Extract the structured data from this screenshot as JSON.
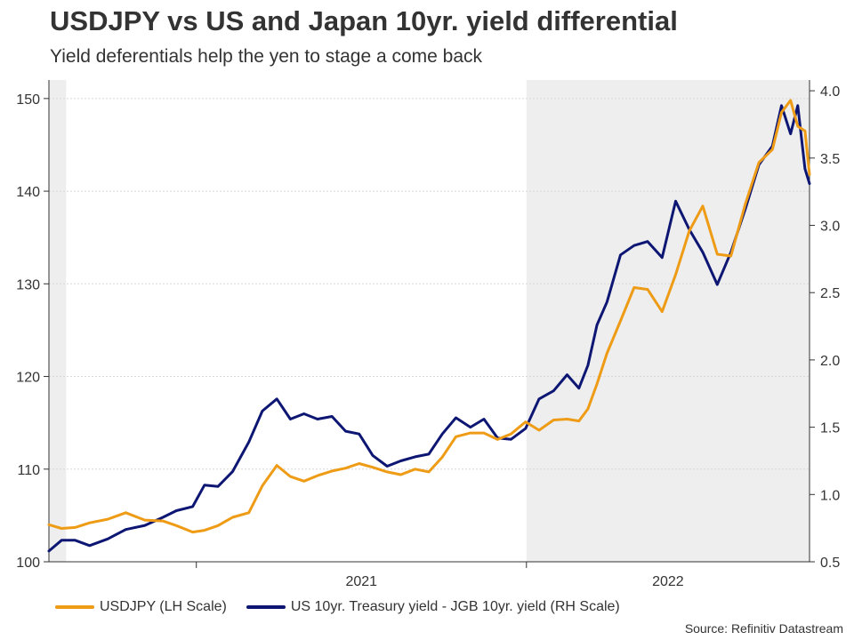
{
  "title": "USDJPY vs US and Japan 10yr. yield differential",
  "subtitle": "Yield deferentials help the yen to stage a come back",
  "source": "Source: Refinitiv Datastream",
  "colors": {
    "usdjpy": "#ee9b16",
    "spread": "#0d1773",
    "shade": "#eeeeee"
  },
  "chart_data": {
    "type": "line",
    "x_ticks": [
      "2021",
      "2022"
    ],
    "left_axis": {
      "ylim": [
        100,
        152
      ],
      "ticks": [
        100,
        110,
        120,
        130,
        140,
        150
      ]
    },
    "right_axis": {
      "ylim": [
        0.5,
        4.08
      ],
      "ticks": [
        "0.5",
        "1.0",
        "1.5",
        "2.0",
        "2.5",
        "3.0",
        "3.5",
        "4.0"
      ]
    },
    "xlim": [
      "2020-07-22",
      "2022-11-10"
    ],
    "shaded_periods": [
      [
        "2020-07-22",
        "2020-08-10"
      ],
      [
        "2022-01-01",
        "2022-11-10"
      ]
    ],
    "grid": "horizontal",
    "legend_position": "bottom",
    "series": [
      {
        "name": "USDJPY (LH Scale)",
        "axis": "left",
        "x": [
          "2020-07-22",
          "2020-08-05",
          "2020-08-20",
          "2020-09-05",
          "2020-09-25",
          "2020-10-15",
          "2020-11-05",
          "2020-11-25",
          "2020-12-10",
          "2020-12-28",
          "2021-01-10",
          "2021-01-25",
          "2021-02-10",
          "2021-02-28",
          "2021-03-15",
          "2021-03-31",
          "2021-04-15",
          "2021-04-30",
          "2021-05-15",
          "2021-05-31",
          "2021-06-15",
          "2021-06-30",
          "2021-07-15",
          "2021-07-31",
          "2021-08-15",
          "2021-08-31",
          "2021-09-15",
          "2021-09-30",
          "2021-10-15",
          "2021-10-31",
          "2021-11-15",
          "2021-11-30",
          "2021-12-15",
          "2021-12-31",
          "2022-01-15",
          "2022-01-31",
          "2022-02-15",
          "2022-02-28",
          "2022-03-10",
          "2022-03-20",
          "2022-03-31",
          "2022-04-15",
          "2022-04-30",
          "2022-05-15",
          "2022-05-31",
          "2022-06-15",
          "2022-06-30",
          "2022-07-15",
          "2022-07-31",
          "2022-08-15",
          "2022-08-31",
          "2022-09-15",
          "2022-09-30",
          "2022-10-10",
          "2022-10-20",
          "2022-10-28",
          "2022-11-05",
          "2022-11-10"
        ],
        "values": [
          104.0,
          103.6,
          103.7,
          104.2,
          104.6,
          105.3,
          104.5,
          104.4,
          103.9,
          103.2,
          103.4,
          103.9,
          104.8,
          105.3,
          108.2,
          110.4,
          109.2,
          108.7,
          109.3,
          109.8,
          110.1,
          110.6,
          110.2,
          109.7,
          109.4,
          110.0,
          109.7,
          111.3,
          113.5,
          113.9,
          113.9,
          113.2,
          113.8,
          115.1,
          114.2,
          115.3,
          115.4,
          115.2,
          116.5,
          119.2,
          122.5,
          126.0,
          129.6,
          129.4,
          127.0,
          131.0,
          135.7,
          138.4,
          133.2,
          133.0,
          138.6,
          143.1,
          144.5,
          148.5,
          149.8,
          147.0,
          146.5,
          141.8
        ]
      },
      {
        "name": "US 10yr. Treasury yield - JGB 10yr. yield (RH Scale)",
        "axis": "right",
        "x": [
          "2020-07-22",
          "2020-08-05",
          "2020-08-20",
          "2020-09-05",
          "2020-09-25",
          "2020-10-15",
          "2020-11-05",
          "2020-11-25",
          "2020-12-10",
          "2020-12-28",
          "2021-01-10",
          "2021-01-25",
          "2021-02-10",
          "2021-02-28",
          "2021-03-15",
          "2021-03-31",
          "2021-04-15",
          "2021-04-30",
          "2021-05-15",
          "2021-05-31",
          "2021-06-15",
          "2021-06-30",
          "2021-07-15",
          "2021-07-31",
          "2021-08-15",
          "2021-08-31",
          "2021-09-15",
          "2021-09-30",
          "2021-10-15",
          "2021-10-31",
          "2021-11-15",
          "2021-11-30",
          "2021-12-15",
          "2021-12-31",
          "2022-01-15",
          "2022-01-31",
          "2022-02-15",
          "2022-02-28",
          "2022-03-10",
          "2022-03-20",
          "2022-03-31",
          "2022-04-15",
          "2022-04-30",
          "2022-05-15",
          "2022-05-31",
          "2022-06-15",
          "2022-06-30",
          "2022-07-15",
          "2022-07-31",
          "2022-08-15",
          "2022-08-31",
          "2022-09-15",
          "2022-09-30",
          "2022-10-10",
          "2022-10-20",
          "2022-10-28",
          "2022-11-05",
          "2022-11-10"
        ],
        "values": [
          0.58,
          0.66,
          0.66,
          0.62,
          0.67,
          0.74,
          0.77,
          0.83,
          0.88,
          0.91,
          1.07,
          1.06,
          1.17,
          1.39,
          1.62,
          1.71,
          1.56,
          1.6,
          1.56,
          1.58,
          1.47,
          1.45,
          1.29,
          1.21,
          1.25,
          1.28,
          1.3,
          1.45,
          1.57,
          1.5,
          1.56,
          1.42,
          1.41,
          1.49,
          1.71,
          1.77,
          1.89,
          1.79,
          1.96,
          2.26,
          2.43,
          2.78,
          2.85,
          2.88,
          2.76,
          3.18,
          2.97,
          2.8,
          2.56,
          2.8,
          3.12,
          3.45,
          3.59,
          3.89,
          3.68,
          3.89,
          3.42,
          3.31
        ]
      }
    ]
  }
}
